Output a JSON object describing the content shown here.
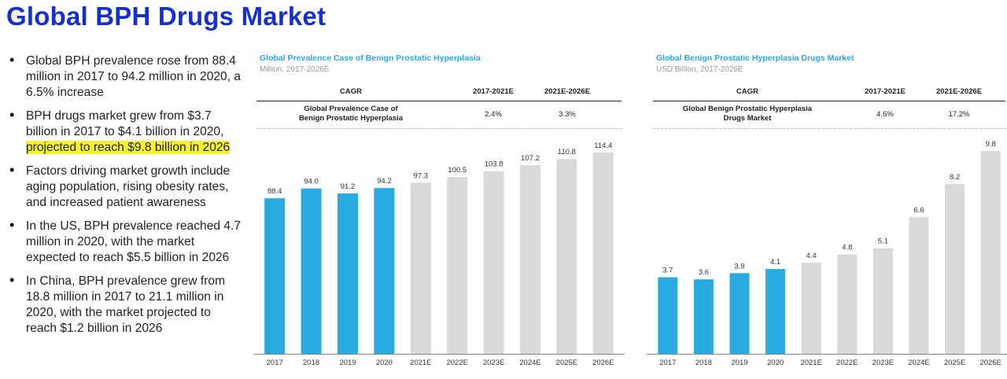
{
  "page": {
    "title": "Global BPH Drugs Market",
    "bullets": [
      {
        "text": "Global BPH prevalence rose from 88.4 million in 2017 to 94.2 million in 2020, a 6.5% increase"
      },
      {
        "text": "BPH drugs market grew from $3.7 billion in 2017 to $4.1 billion in 2020, ",
        "highlight": "projected to reach $9.8 billion in 2026"
      },
      {
        "text": "Factors driving market growth include aging population, rising obesity rates, and increased patient awareness"
      },
      {
        "text": "In the US, BPH prevalence reached 4.7 million in 2020, with the market expected to reach $5.5 billion in 2026"
      },
      {
        "text": "In China, BPH prevalence grew from 18.8 million in 2017 to 21.1 million in 2020, with the market projected to reach $1.2 billion in 2026"
      }
    ],
    "colors": {
      "title": "#1631c9",
      "actual": "#29abe2",
      "estimate": "#d9d9d9",
      "highlight": "#f4f135"
    }
  },
  "chart_data": [
    {
      "type": "bar",
      "title": "Global Prevalence Case of Benign Prostatic Hyperplasia",
      "subtitle": "Million, 2017-2026E",
      "cagr_table": {
        "headers": [
          "CAGR",
          "2017-2021E",
          "2021E-2026E"
        ],
        "row": {
          "label_line1": "Global Prevalence Case of",
          "label_line2": "Benign Prostatic Hyperplasia",
          "values": [
            "2.4%",
            "3.3%"
          ]
        }
      },
      "categories": [
        "2017",
        "2018",
        "2019",
        "2020",
        "2021E",
        "2022E",
        "2023E",
        "2024E",
        "2025E",
        "2026E"
      ],
      "values": [
        88.4,
        94.0,
        91.2,
        94.2,
        97.3,
        100.5,
        103.8,
        107.2,
        110.8,
        114.4
      ],
      "value_labels": [
        "88.4",
        "94.0",
        "91.2",
        "94.2",
        "97.3",
        "100.5",
        "103.8",
        "107.2",
        "110.8",
        "114.4"
      ],
      "actual_count": 4,
      "ylim": [
        0,
        114.4
      ]
    },
    {
      "type": "bar",
      "title": "Global Benign Prostatic Hyperplasia Drugs Market",
      "subtitle": "USD Billion, 2017-2026E",
      "cagr_table": {
        "headers": [
          "CAGR",
          "2017-2021E",
          "2021E-2026E"
        ],
        "row": {
          "label_line1": "Global Benign Prostatic Hyperplasia",
          "label_line2": "Drugs Market",
          "values": [
            "4.6%",
            "17.2%"
          ]
        }
      },
      "categories": [
        "2017",
        "2018",
        "2019",
        "2020",
        "2021E",
        "2022E",
        "2023E",
        "2024E",
        "2025E",
        "2026E"
      ],
      "values": [
        3.7,
        3.6,
        3.9,
        4.1,
        4.4,
        4.8,
        5.1,
        6.6,
        8.2,
        9.8
      ],
      "value_labels": [
        "3.7",
        "3.6",
        "3.9",
        "4.1",
        "4.4",
        "4.8",
        "5.1",
        "6.6",
        "8.2",
        "9.8"
      ],
      "actual_count": 4,
      "ylim": [
        0,
        9.8
      ]
    }
  ]
}
